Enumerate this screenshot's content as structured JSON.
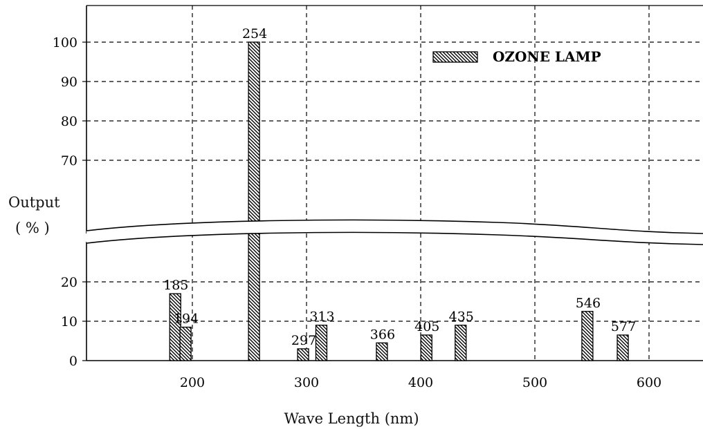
{
  "chart_data": {
    "type": "bar",
    "title": "",
    "xlabel": "Wave Length (nm)",
    "ylabel": "Output",
    "ylabel_unit": "( % )",
    "legend": {
      "entries": [
        "OZONE LAMP"
      ],
      "placement": "top-right",
      "swatch": "diagonal-hatch"
    },
    "grid": true,
    "axis_break": true,
    "x_ticks": [
      200,
      300,
      400,
      500,
      600
    ],
    "y_ticks_lower": [
      0,
      10,
      20
    ],
    "y_ticks_upper": [
      70,
      80,
      90,
      100
    ],
    "series": [
      {
        "name": "OZONE LAMP",
        "points": [
          {
            "label": "185",
            "x": 185,
            "y": 17
          },
          {
            "label": "194",
            "x": 194,
            "y": 8.5
          },
          {
            "label": "254",
            "x": 254,
            "y": 100
          },
          {
            "label": "297",
            "x": 297,
            "y": 3
          },
          {
            "label": "313",
            "x": 313,
            "y": 9
          },
          {
            "label": "366",
            "x": 366,
            "y": 4.5
          },
          {
            "label": "405",
            "x": 405,
            "y": 6.5
          },
          {
            "label": "435",
            "x": 435,
            "y": 9
          },
          {
            "label": "546",
            "x": 546,
            "y": 12.5
          },
          {
            "label": "577",
            "x": 577,
            "y": 6.5
          }
        ]
      }
    ],
    "colors": {
      "bar_fill": "#ffffff",
      "bar_stroke": "#000000",
      "grid": "#000000"
    }
  }
}
